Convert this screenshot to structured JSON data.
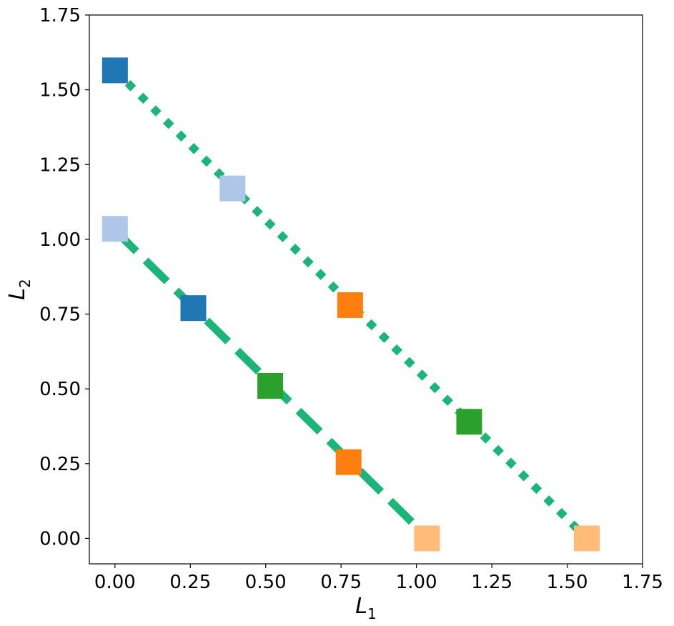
{
  "chart_data": {
    "type": "scatter",
    "xlabel": "L",
    "xlabel_subscript": "1",
    "ylabel": "L",
    "ylabel_subscript": "2",
    "xlim": [
      -0.085,
      1.75
    ],
    "ylim": [
      -0.085,
      1.75
    ],
    "xticks": [
      "0.00",
      "0.25",
      "0.50",
      "0.75",
      "1.00",
      "1.25",
      "1.50",
      "1.75"
    ],
    "yticks": [
      "0.00",
      "0.25",
      "0.50",
      "0.75",
      "1.00",
      "1.25",
      "1.50",
      "1.75"
    ],
    "grid": false,
    "line_color": "#1bb57a",
    "lines": [
      {
        "style": "dashed",
        "x": [
          0.0,
          1.04
        ],
        "y": [
          1.03,
          0.0
        ]
      },
      {
        "style": "dotted",
        "x": [
          0.0,
          1.565
        ],
        "y": [
          1.565,
          0.0
        ]
      }
    ],
    "points": [
      {
        "x": 0.0,
        "y": 1.565,
        "color": "#1f77b4"
      },
      {
        "x": 0.39,
        "y": 1.17,
        "color": "#aec7e8"
      },
      {
        "x": 0.78,
        "y": 0.78,
        "color": "#ff7f0e"
      },
      {
        "x": 1.175,
        "y": 0.39,
        "color": "#2ca02c"
      },
      {
        "x": 1.565,
        "y": 0.0,
        "color": "#ffbb78"
      },
      {
        "x": 0.0,
        "y": 1.035,
        "color": "#aec7e8"
      },
      {
        "x": 0.26,
        "y": 0.77,
        "color": "#1f77b4"
      },
      {
        "x": 0.515,
        "y": 0.51,
        "color": "#2ca02c"
      },
      {
        "x": 0.775,
        "y": 0.255,
        "color": "#ff7f0e"
      },
      {
        "x": 1.035,
        "y": 0.0,
        "color": "#ffbb78"
      }
    ]
  }
}
